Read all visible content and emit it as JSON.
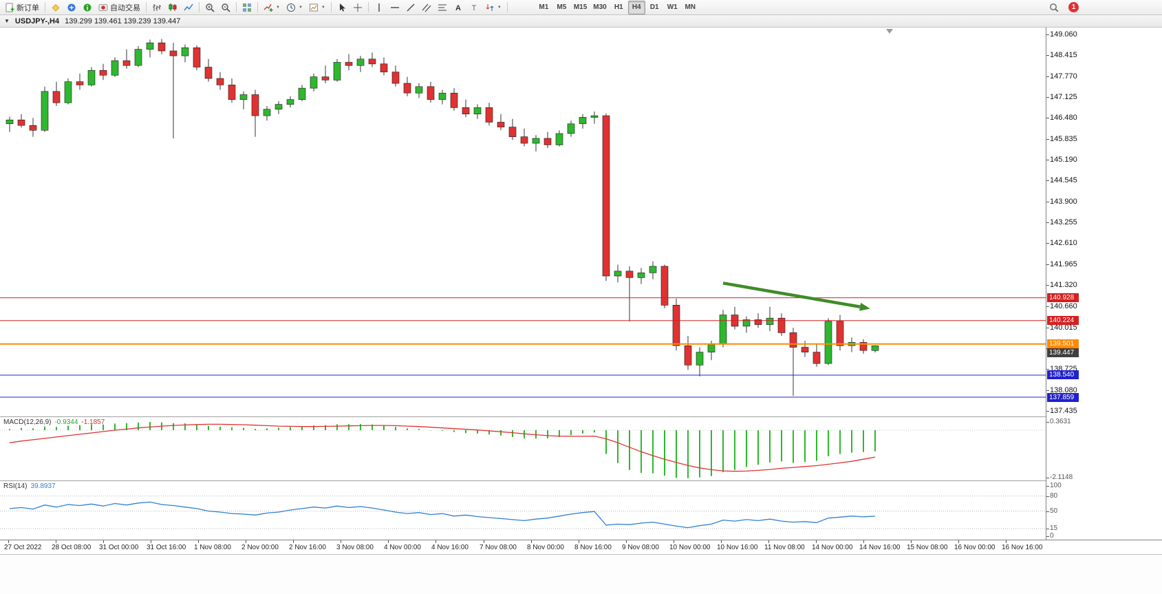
{
  "toolbar": {
    "new_order_label": "新订单",
    "autotrading_label": "自动交易",
    "notification_count": "1",
    "active_timeframe": "H4",
    "timeframes": [
      "M1",
      "M5",
      "M15",
      "M30",
      "H1",
      "H4",
      "D1",
      "W1",
      "MN"
    ],
    "items": [
      {
        "name": "new-order-button",
        "icon": "new-order",
        "label": "新订单"
      },
      {
        "sep": true
      },
      {
        "name": "metaeditor-button",
        "icon": "metaeditor"
      },
      {
        "name": "market-watch-button",
        "icon": "market-watch"
      },
      {
        "name": "help-button",
        "icon": "help"
      },
      {
        "name": "autotrading-button",
        "icon": "autotrading",
        "label": "自动交易"
      },
      {
        "sep": true
      },
      {
        "name": "bar-chart-type-button",
        "icon": "ohlc-bars"
      },
      {
        "name": "candlestick-type-button",
        "icon": "candles"
      },
      {
        "name": "line-chart-type-button",
        "icon": "linechart"
      },
      {
        "sep": true
      },
      {
        "name": "zoom-in-button",
        "icon": "zoom-in"
      },
      {
        "name": "zoom-out-button",
        "icon": "zoom-out"
      },
      {
        "sep": true
      },
      {
        "name": "tile-windows-button",
        "icon": "tile"
      },
      {
        "sep": true
      },
      {
        "name": "indicators-button",
        "icon": "indicator-add",
        "dropdown": true
      },
      {
        "name": "periods-button",
        "icon": "clock",
        "dropdown": true
      },
      {
        "name": "templates-button",
        "icon": "template",
        "dropdown": true
      },
      {
        "sep": true
      },
      {
        "name": "cursor-button",
        "icon": "cursor"
      },
      {
        "name": "crosshair-button",
        "icon": "crosshair"
      },
      {
        "sep": true
      },
      {
        "name": "vertical-line-button",
        "icon": "vline"
      },
      {
        "name": "horizontal-line-button",
        "icon": "hline"
      },
      {
        "name": "trendline-button",
        "icon": "trendline"
      },
      {
        "name": "equidistant-channel-button",
        "icon": "channel"
      },
      {
        "name": "fibonacci-button",
        "icon": "fibo"
      },
      {
        "name": "text-button",
        "icon": "textA"
      },
      {
        "name": "text-label-button",
        "icon": "textT"
      },
      {
        "name": "arrows-button",
        "icon": "arrows",
        "dropdown": true
      },
      {
        "sep": true
      }
    ]
  },
  "chart_title": {
    "symbol_period": "USDJPY-,H4",
    "ohlc": "139.299 139.461 139.239 139.447"
  },
  "chart_data": {
    "type": "candlestick",
    "symbol": "USDJPY-",
    "period": "H4",
    "current_ohlc": {
      "open": "139.299",
      "high": "139.461",
      "low": "139.239",
      "close": "139.447"
    },
    "colors": {
      "up": "#2eb82e",
      "down": "#e03232",
      "wick": "#333333"
    },
    "price_ticks": [
      "149.060",
      "148.415",
      "147.770",
      "147.125",
      "146.480",
      "145.835",
      "145.190",
      "144.545",
      "143.900",
      "143.255",
      "142.610",
      "141.965",
      "141.320",
      "140.660",
      "140.015",
      "139.370",
      "138.725",
      "138.080",
      "137.435"
    ],
    "time_labels": [
      "27 Oct 2022",
      "28 Oct 08:00",
      "31 Oct 00:00",
      "31 Oct 16:00",
      "1 Nov 08:00",
      "2 Nov 00:00",
      "2 Nov 16:00",
      "3 Nov 08:00",
      "4 Nov 00:00",
      "4 Nov 16:00",
      "7 Nov 08:00",
      "8 Nov 00:00",
      "8 Nov 16:00",
      "9 Nov 08:00",
      "10 Nov 00:00",
      "10 Nov 16:00",
      "11 Nov 08:00",
      "14 Nov 00:00",
      "14 Nov 16:00",
      "15 Nov 08:00",
      "16 Nov 00:00",
      "16 Nov 16:00"
    ],
    "horizontal_lines": [
      {
        "label": "140.928",
        "price": 140.928,
        "color": "#d42020",
        "width": 1
      },
      {
        "label": "140.224",
        "price": 140.224,
        "color": "#d42020",
        "width": 1
      },
      {
        "label": "139.501",
        "price": 139.501,
        "color": "#ff8a00",
        "width": 2
      },
      {
        "label": "138.540",
        "price": 138.54,
        "color": "#2020cc",
        "width": 1
      },
      {
        "label": "137.859",
        "price": 137.859,
        "color": "#2020cc",
        "width": 1
      }
    ],
    "current_price_tag": {
      "label": "139.447",
      "bg": "#3f3f3f"
    },
    "annotation_arrow": {
      "color": "#3f8c28",
      "from_bar": 61,
      "from_price": 141.38,
      "to_bar": 73,
      "to_price": 140.63
    },
    "candles": [
      [
        146.3,
        146.52,
        146.05,
        146.42
      ],
      [
        146.42,
        146.6,
        146.18,
        146.25
      ],
      [
        146.25,
        146.48,
        145.9,
        146.1
      ],
      [
        146.1,
        147.45,
        146.05,
        147.3
      ],
      [
        147.3,
        147.6,
        146.85,
        146.95
      ],
      [
        146.95,
        147.7,
        146.9,
        147.6
      ],
      [
        147.6,
        147.85,
        147.35,
        147.5
      ],
      [
        147.5,
        148.05,
        147.45,
        147.95
      ],
      [
        147.95,
        148.15,
        147.65,
        147.8
      ],
      [
        147.8,
        148.35,
        147.75,
        148.25
      ],
      [
        148.25,
        148.6,
        148.0,
        148.1
      ],
      [
        148.1,
        148.7,
        148.05,
        148.6
      ],
      [
        148.6,
        148.9,
        148.35,
        148.8
      ],
      [
        148.8,
        148.92,
        148.45,
        148.55
      ],
      [
        148.55,
        148.8,
        145.85,
        148.4
      ],
      [
        148.4,
        148.75,
        148.2,
        148.65
      ],
      [
        148.65,
        148.72,
        147.95,
        148.05
      ],
      [
        148.05,
        148.3,
        147.6,
        147.7
      ],
      [
        147.7,
        147.9,
        147.35,
        147.5
      ],
      [
        147.5,
        147.7,
        146.95,
        147.05
      ],
      [
        147.05,
        147.3,
        146.75,
        147.2
      ],
      [
        147.2,
        147.35,
        145.9,
        146.55
      ],
      [
        146.55,
        146.85,
        146.4,
        146.75
      ],
      [
        146.75,
        147.0,
        146.6,
        146.9
      ],
      [
        146.9,
        147.15,
        146.8,
        147.05
      ],
      [
        147.05,
        147.5,
        147.0,
        147.4
      ],
      [
        147.4,
        147.85,
        147.3,
        147.75
      ],
      [
        147.75,
        148.1,
        147.55,
        147.65
      ],
      [
        147.65,
        148.3,
        147.6,
        148.2
      ],
      [
        148.2,
        148.45,
        147.95,
        148.1
      ],
      [
        148.1,
        148.4,
        147.9,
        148.3
      ],
      [
        148.3,
        148.5,
        148.05,
        148.15
      ],
      [
        148.15,
        148.35,
        147.8,
        147.9
      ],
      [
        147.9,
        148.1,
        147.45,
        147.55
      ],
      [
        147.55,
        147.75,
        147.15,
        147.25
      ],
      [
        147.25,
        147.55,
        147.1,
        147.45
      ],
      [
        147.45,
        147.6,
        146.95,
        147.05
      ],
      [
        147.05,
        147.35,
        146.9,
        147.25
      ],
      [
        147.25,
        147.4,
        146.7,
        146.8
      ],
      [
        146.8,
        147.05,
        146.5,
        146.6
      ],
      [
        146.6,
        146.9,
        146.45,
        146.8
      ],
      [
        146.8,
        146.95,
        146.25,
        146.35
      ],
      [
        146.35,
        146.6,
        146.1,
        146.2
      ],
      [
        146.2,
        146.45,
        145.8,
        145.9
      ],
      [
        145.9,
        146.15,
        145.6,
        145.7
      ],
      [
        145.7,
        145.95,
        145.45,
        145.85
      ],
      [
        145.85,
        146.05,
        145.55,
        145.65
      ],
      [
        145.65,
        146.1,
        145.6,
        146.0
      ],
      [
        146.0,
        146.4,
        145.9,
        146.3
      ],
      [
        146.3,
        146.6,
        146.15,
        146.5
      ],
      [
        146.5,
        146.68,
        146.3,
        146.55
      ],
      [
        146.55,
        146.62,
        141.45,
        141.6
      ],
      [
        141.6,
        141.95,
        141.4,
        141.75
      ],
      [
        141.75,
        141.9,
        140.2,
        141.55
      ],
      [
        141.55,
        141.85,
        141.35,
        141.7
      ],
      [
        141.7,
        142.05,
        141.5,
        141.9
      ],
      [
        141.9,
        141.95,
        140.6,
        140.7
      ],
      [
        140.7,
        140.9,
        139.3,
        139.45
      ],
      [
        139.45,
        139.75,
        138.7,
        138.85
      ],
      [
        138.85,
        139.4,
        138.5,
        139.25
      ],
      [
        139.25,
        139.6,
        139.0,
        139.5
      ],
      [
        139.5,
        140.55,
        139.4,
        140.4
      ],
      [
        140.4,
        140.65,
        139.95,
        140.05
      ],
      [
        140.05,
        140.35,
        139.85,
        140.25
      ],
      [
        140.25,
        140.45,
        140.0,
        140.1
      ],
      [
        140.1,
        140.65,
        139.9,
        140.3
      ],
      [
        140.3,
        140.45,
        139.75,
        139.85
      ],
      [
        139.85,
        140.0,
        137.9,
        139.4
      ],
      [
        139.4,
        139.6,
        139.1,
        139.25
      ],
      [
        139.25,
        139.5,
        138.8,
        138.9
      ],
      [
        138.9,
        140.3,
        138.85,
        140.2
      ],
      [
        140.2,
        140.4,
        139.3,
        139.45
      ],
      [
        139.45,
        139.7,
        139.25,
        139.55
      ],
      [
        139.55,
        139.65,
        139.2,
        139.3
      ],
      [
        139.299,
        139.461,
        139.239,
        139.447
      ]
    ],
    "macd": {
      "label": "MACD(12,26,9)",
      "main_value": "-0.9344",
      "signal_value": "-1.1857",
      "scale_max": "0.3631",
      "scale_min": "-2.1148",
      "histogram_color": "#2db82d",
      "signal_color": "#e03232",
      "histogram": [
        0.05,
        0.1,
        0.08,
        0.16,
        0.14,
        0.2,
        0.22,
        0.26,
        0.25,
        0.29,
        0.31,
        0.34,
        0.3631,
        0.345,
        0.31,
        0.3,
        0.25,
        0.19,
        0.15,
        0.13,
        0.1,
        0.06,
        0.08,
        0.11,
        0.14,
        0.18,
        0.21,
        0.22,
        0.26,
        0.26,
        0.27,
        0.25,
        0.21,
        0.15,
        0.08,
        0.05,
        -0.01,
        -0.03,
        -0.08,
        -0.13,
        -0.15,
        -0.19,
        -0.23,
        -0.3,
        -0.36,
        -0.37,
        -0.36,
        -0.3,
        -0.22,
        -0.15,
        -0.1,
        -1.05,
        -1.45,
        -1.75,
        -1.88,
        -1.9,
        -2.0,
        -2.1,
        -2.1148,
        -2.08,
        -2.02,
        -1.85,
        -1.75,
        -1.62,
        -1.52,
        -1.42,
        -1.38,
        -1.44,
        -1.4,
        -1.35,
        -1.15,
        -1.05,
        -0.99,
        -0.96,
        -0.9344
      ],
      "signal": [
        -0.55,
        -0.48,
        -0.42,
        -0.36,
        -0.3,
        -0.24,
        -0.18,
        -0.12,
        -0.06,
        0.0,
        0.05,
        0.1,
        0.14,
        0.18,
        0.21,
        0.23,
        0.25,
        0.26,
        0.26,
        0.25,
        0.24,
        0.22,
        0.2,
        0.18,
        0.17,
        0.16,
        0.16,
        0.17,
        0.18,
        0.19,
        0.2,
        0.21,
        0.21,
        0.2,
        0.18,
        0.16,
        0.13,
        0.1,
        0.07,
        0.04,
        0.01,
        -0.03,
        -0.07,
        -0.11,
        -0.16,
        -0.2,
        -0.24,
        -0.26,
        -0.27,
        -0.27,
        -0.26,
        -0.38,
        -0.55,
        -0.75,
        -0.95,
        -1.12,
        -1.28,
        -1.42,
        -1.55,
        -1.66,
        -1.74,
        -1.79,
        -1.81,
        -1.8,
        -1.77,
        -1.73,
        -1.68,
        -1.64,
        -1.6,
        -1.56,
        -1.5,
        -1.44,
        -1.37,
        -1.28,
        -1.1857
      ]
    },
    "rsi": {
      "label": "RSI(14)",
      "value": "39.8937",
      "color": "#2f7fd0",
      "scale_labels": [
        "100",
        "80",
        "50",
        "15",
        "0"
      ],
      "levels": [
        80,
        50,
        15
      ],
      "values": [
        55,
        57,
        54,
        62,
        58,
        63,
        61,
        64,
        60,
        65,
        62,
        66,
        68,
        63,
        61,
        58,
        55,
        50,
        48,
        45,
        44,
        42,
        46,
        48,
        52,
        55,
        58,
        56,
        60,
        57,
        59,
        56,
        52,
        48,
        45,
        47,
        43,
        45,
        40,
        42,
        39,
        37,
        35,
        33,
        31,
        34,
        36,
        40,
        44,
        47,
        49,
        22,
        24,
        23,
        26,
        28,
        24,
        20,
        17,
        21,
        24,
        32,
        30,
        33,
        31,
        34,
        30,
        28,
        29,
        27,
        36,
        38,
        40,
        38.5,
        39.8937
      ]
    }
  }
}
